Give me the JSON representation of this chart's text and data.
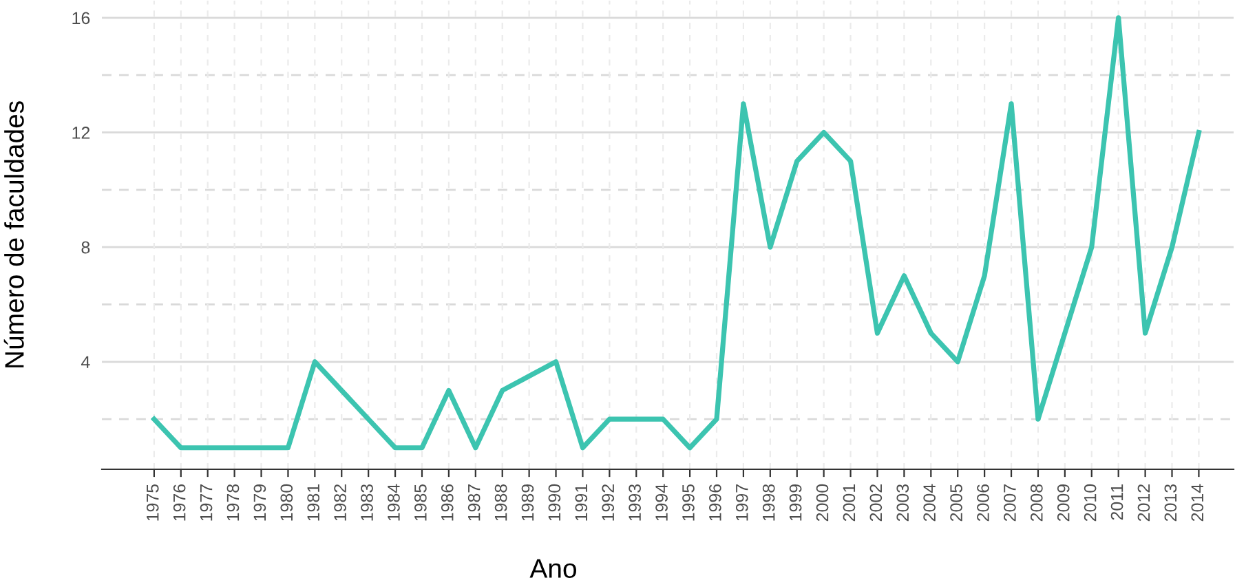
{
  "chart_data": {
    "type": "line",
    "xlabel": "Ano",
    "ylabel": "Número de faculdades",
    "series": [
      {
        "color": "#3cc4b0",
        "x": [
          1975,
          1976,
          1977,
          1978,
          1979,
          1980,
          1981,
          1982,
          1983,
          1984,
          1985,
          1986,
          1987,
          1988,
          1990,
          1991,
          1992,
          1993,
          1994,
          1995,
          1996,
          1997,
          1998,
          1999,
          2000,
          2001,
          2002,
          2003,
          2004,
          2005,
          2006,
          2007,
          2008,
          2009,
          2010,
          2011,
          2012,
          2013,
          2014
        ],
        "values": [
          2,
          1,
          1,
          1,
          1,
          1,
          4,
          3,
          2,
          1,
          1,
          3,
          1,
          3,
          4,
          1,
          2,
          2,
          2,
          1,
          2,
          13,
          8,
          11,
          12,
          11,
          5,
          7,
          5,
          4,
          7,
          13,
          2,
          5,
          8,
          16,
          5,
          8,
          12
        ]
      }
    ],
    "xlim": [
      1973.05,
      2015.3
    ],
    "xticks": [
      1975,
      1976,
      1977,
      1978,
      1979,
      1980,
      1981,
      1982,
      1983,
      1984,
      1985,
      1986,
      1987,
      1988,
      1989,
      1990,
      1991,
      1992,
      1993,
      1994,
      1995,
      1996,
      1997,
      1998,
      1999,
      2000,
      2001,
      2002,
      2003,
      2004,
      2005,
      2006,
      2007,
      2008,
      2009,
      2010,
      2011,
      2012,
      2013,
      2014
    ],
    "ylim": [
      0.25,
      16.6
    ],
    "yticks": [
      {
        "value": 2,
        "label": null
      },
      4,
      {
        "value": 6,
        "label": null
      },
      8,
      {
        "value": 10,
        "label": null
      },
      12,
      {
        "value": 14,
        "label": null
      },
      16
    ],
    "grid": true,
    "marker": "none",
    "line_style": "solid"
  }
}
